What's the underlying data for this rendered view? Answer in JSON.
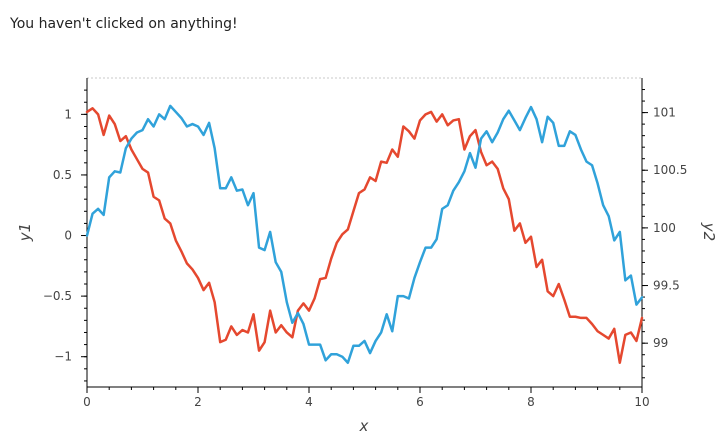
{
  "status_text": "You haven't clicked on anything!",
  "chart_data": {
    "type": "line",
    "xlabel": "x",
    "ylabel_left": "y1",
    "ylabel_right": "y2",
    "xlim": [
      0,
      10
    ],
    "ylim_left": [
      -1.25,
      1.3
    ],
    "ylim_right": [
      98.62,
      101.3
    ],
    "x_ticks": [
      "0",
      "2",
      "4",
      "6",
      "8",
      "10"
    ],
    "y_left_ticks": [
      "1",
      "0.5",
      "0",
      "−0.5",
      "−1"
    ],
    "y_right_ticks": [
      "101",
      "100.5",
      "100",
      "99.5",
      "99"
    ],
    "grid": false,
    "series": [
      {
        "axis": "left",
        "color": "#e5482f",
        "x": [
          0,
          0.1,
          0.2,
          0.3,
          0.4,
          0.5,
          0.6,
          0.7,
          0.8,
          0.9,
          1.0,
          1.1,
          1.2,
          1.3,
          1.4,
          1.5,
          1.6,
          1.7,
          1.8,
          1.9,
          2.0,
          2.1,
          2.2,
          2.3,
          2.4,
          2.5,
          2.6,
          2.7,
          2.8,
          2.9,
          3.0,
          3.1,
          3.2,
          3.3,
          3.4,
          3.5,
          3.6,
          3.7,
          3.8,
          3.9,
          4.0,
          4.1,
          4.2,
          4.3,
          4.4,
          4.5,
          4.6,
          4.7,
          4.8,
          4.9,
          5.0,
          5.1,
          5.2,
          5.3,
          5.4,
          5.5,
          5.6,
          5.7,
          5.8,
          5.9,
          6.0,
          6.1,
          6.2,
          6.3,
          6.4,
          6.5,
          6.6,
          6.7,
          6.8,
          6.9,
          7.0,
          7.1,
          7.2,
          7.3,
          7.4,
          7.5,
          7.6,
          7.7,
          7.8,
          7.9,
          8.0,
          8.1,
          8.2,
          8.3,
          8.4,
          8.5,
          8.6,
          8.7,
          8.8,
          8.9,
          9.0,
          9.1,
          9.2,
          9.3,
          9.4,
          9.5,
          9.6,
          9.7,
          9.8,
          9.9,
          10.0
        ],
        "values": [
          1.02,
          1.05,
          1.0,
          0.83,
          0.99,
          0.92,
          0.78,
          0.82,
          0.71,
          0.63,
          0.55,
          0.52,
          0.32,
          0.29,
          0.14,
          0.1,
          -0.04,
          -0.13,
          -0.23,
          -0.28,
          -0.35,
          -0.45,
          -0.39,
          -0.55,
          -0.88,
          -0.86,
          -0.75,
          -0.82,
          -0.78,
          -0.8,
          -0.65,
          -0.95,
          -0.88,
          -0.62,
          -0.8,
          -0.74,
          -0.8,
          -0.84,
          -0.62,
          -0.56,
          -0.62,
          -0.52,
          -0.36,
          -0.35,
          -0.19,
          -0.06,
          0.01,
          0.05,
          0.2,
          0.35,
          0.38,
          0.48,
          0.45,
          0.61,
          0.6,
          0.71,
          0.65,
          0.9,
          0.86,
          0.8,
          0.95,
          1.0,
          1.02,
          0.94,
          1.0,
          0.91,
          0.95,
          0.96,
          0.71,
          0.82,
          0.87,
          0.69,
          0.58,
          0.61,
          0.55,
          0.39,
          0.3,
          0.04,
          0.1,
          -0.06,
          -0.01,
          -0.26,
          -0.2,
          -0.46,
          -0.5,
          -0.4,
          -0.53,
          -0.67,
          -0.67,
          -0.68,
          -0.68,
          -0.73,
          -0.79,
          -0.82,
          -0.85,
          -0.77,
          -1.05,
          -0.82,
          -0.8,
          -0.87,
          -0.68
        ]
      },
      {
        "axis": "left",
        "color": "#30a2da",
        "x": [
          0,
          0.1,
          0.2,
          0.3,
          0.4,
          0.5,
          0.6,
          0.7,
          0.8,
          0.9,
          1.0,
          1.1,
          1.2,
          1.3,
          1.4,
          1.5,
          1.6,
          1.7,
          1.8,
          1.9,
          2.0,
          2.1,
          2.2,
          2.3,
          2.4,
          2.5,
          2.6,
          2.7,
          2.8,
          2.9,
          3.0,
          3.1,
          3.2,
          3.3,
          3.4,
          3.5,
          3.6,
          3.7,
          3.8,
          3.9,
          4.0,
          4.1,
          4.2,
          4.3,
          4.4,
          4.5,
          4.6,
          4.7,
          4.8,
          4.9,
          5.0,
          5.1,
          5.2,
          5.3,
          5.4,
          5.5,
          5.6,
          5.7,
          5.8,
          5.9,
          6.0,
          6.1,
          6.2,
          6.3,
          6.4,
          6.5,
          6.6,
          6.7,
          6.8,
          6.9,
          7.0,
          7.1,
          7.2,
          7.3,
          7.4,
          7.5,
          7.6,
          7.7,
          7.8,
          7.9,
          8.0,
          8.1,
          8.2,
          8.3,
          8.4,
          8.5,
          8.6,
          8.7,
          8.8,
          8.9,
          9.0,
          9.1,
          9.2,
          9.3,
          9.4,
          9.5,
          9.6,
          9.7,
          9.8,
          9.9,
          10.0
        ],
        "values": [
          0.0,
          0.18,
          0.22,
          0.17,
          0.48,
          0.53,
          0.52,
          0.72,
          0.8,
          0.85,
          0.87,
          0.96,
          0.9,
          1.0,
          0.96,
          1.07,
          1.02,
          0.97,
          0.9,
          0.92,
          0.9,
          0.83,
          0.93,
          0.72,
          0.39,
          0.39,
          0.48,
          0.37,
          0.38,
          0.25,
          0.35,
          -0.1,
          -0.12,
          0.03,
          -0.22,
          -0.3,
          -0.55,
          -0.72,
          -0.64,
          -0.73,
          -0.9,
          -0.9,
          -0.9,
          -1.03,
          -0.98,
          -0.98,
          -1.0,
          -1.05,
          -0.91,
          -0.91,
          -0.87,
          -0.97,
          -0.87,
          -0.8,
          -0.65,
          -0.79,
          -0.5,
          -0.5,
          -0.52,
          -0.35,
          -0.22,
          -0.1,
          -0.1,
          -0.03,
          0.22,
          0.25,
          0.37,
          0.44,
          0.53,
          0.68,
          0.56,
          0.8,
          0.86,
          0.77,
          0.85,
          0.96,
          1.03,
          0.95,
          0.87,
          0.97,
          1.06,
          0.96,
          0.77,
          0.98,
          0.93,
          0.74,
          0.74,
          0.86,
          0.83,
          0.71,
          0.61,
          0.58,
          0.43,
          0.25,
          0.16,
          -0.04,
          0.03,
          -0.37,
          -0.33,
          -0.57,
          -0.51
        ]
      }
    ]
  }
}
